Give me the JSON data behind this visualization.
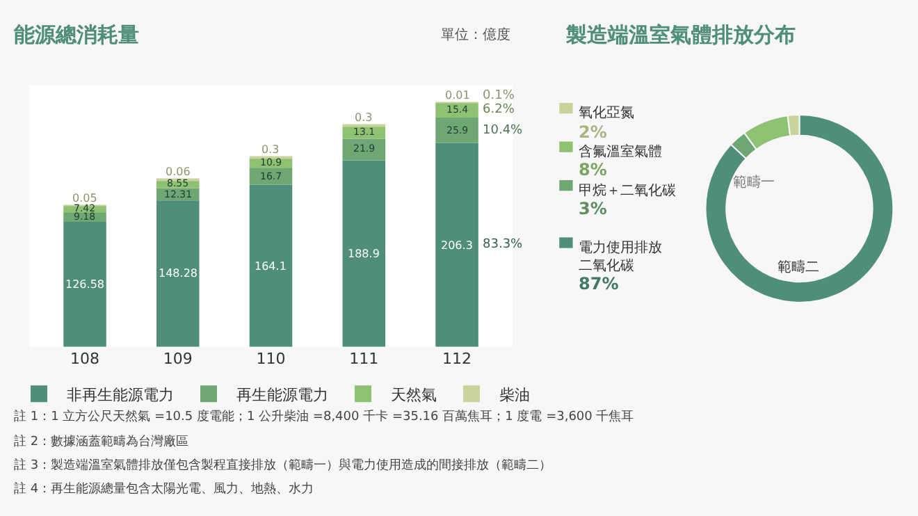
{
  "chart_data": [
    {
      "type": "bar",
      "title": "能源總消耗量",
      "subtitle": "單位：億度",
      "stacked": true,
      "data_labels": true,
      "legend": "bottom",
      "grid": false,
      "tick_labels": "x",
      "categories": [
        "108",
        "109",
        "110",
        "111",
        "112"
      ],
      "series": [
        {
          "name": "非再生能源電力",
          "color": "#4e8e7a",
          "values": [
            126.58,
            148.28,
            164.1,
            188.9,
            206.3
          ]
        },
        {
          "name": "再生能源電力",
          "color": "#6fa774",
          "values": [
            9.18,
            12.31,
            16.7,
            21.9,
            25.9
          ]
        },
        {
          "name": "天然氣",
          "color": "#8fc173",
          "values": [
            7.42,
            8.55,
            10.9,
            13.1,
            15.4
          ]
        },
        {
          "name": "柴油",
          "color": "#c9d49c",
          "values": [
            0.05,
            0.06,
            0.3,
            0.3,
            0.01
          ]
        }
      ],
      "annotations": [
        "83.3%",
        "10.4%",
        "6.2%",
        "0.1%",
        "註 1：1 立方公尺天然氣 =10.5 度電能；1 公升柴油 =8,400 千卡 =35.16 百萬焦耳；1 度電 =3,600 千焦耳",
        "註 2：數據涵蓋範疇為台灣廠區",
        "註 3：製造端溫室氣體排放僅包含製程直接排放（範疇一）與電力使用造成的間接排放（範疇二）",
        "註 4：再生能源總量包含太陽光電、風力、地熱、水力"
      ]
    },
    {
      "type": "donut",
      "title": "製造端溫室氣體排放分布",
      "categories": [
        "電力使用排放二氧化碳",
        "甲烷＋二氧化碳",
        "含氟溫室氣體",
        "氧化亞氮"
      ],
      "values": [
        87,
        3,
        8,
        2
      ],
      "value_labels": [
        "87%",
        "3%",
        "8%",
        "2%"
      ],
      "colors": [
        "#4e8e7a",
        "#6fa774",
        "#8fc173",
        "#c9d49c"
      ],
      "legend": "left",
      "annotations": [
        "範疇一",
        "範疇二"
      ]
    }
  ]
}
